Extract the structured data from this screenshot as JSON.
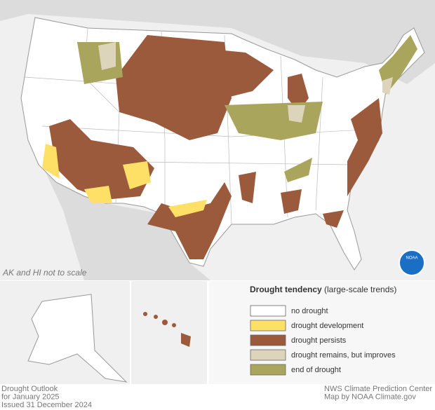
{
  "map": {
    "note": "AK and HI not to scale",
    "logo": "NOAA",
    "legend": {
      "title": "Drought tendency",
      "subtitle": "(large-scale trends)",
      "items": [
        {
          "label": "no drought",
          "color": "#ffffff"
        },
        {
          "label": "drought development",
          "color": "#ffe066"
        },
        {
          "label": "drought persists",
          "color": "#9b5a3c"
        },
        {
          "label": "drought remains, but improves",
          "color": "#ddd4bc"
        },
        {
          "label": "end of drought",
          "color": "#a9a55c"
        }
      ]
    },
    "footer": {
      "left": [
        "Drought Outlook",
        "for January 2025",
        "Issued 31 December 2024"
      ],
      "right": [
        "NWS Climate Prediction Center",
        "Map by NOAA Climate.gov"
      ]
    }
  }
}
